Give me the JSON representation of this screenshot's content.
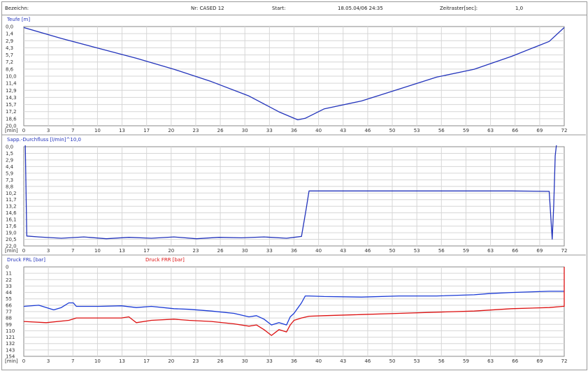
{
  "header": {
    "label_left": "Bezeichn:",
    "label_nr": "Nr: CASED 12",
    "label_start": "Start:",
    "start_value": "18.05.04/06 24:35",
    "label_interval": "Zeitraster[sec]:",
    "interval_value": "1,0"
  },
  "chart_data": [
    {
      "type": "line",
      "title": "Teufe [m]",
      "x_unit_label": "[min]",
      "x_ticks": [
        "0",
        "3",
        "7",
        "10",
        "13",
        "17",
        "20",
        "23",
        "26",
        "30",
        "33",
        "36",
        "40",
        "43",
        "46",
        "50",
        "53",
        "56",
        "59",
        "63",
        "66",
        "69",
        "72"
      ],
      "y_ticks": [
        "0,0",
        "1,4",
        "2,9",
        "4,3",
        "5,7",
        "7,2",
        "8,6",
        "10,0",
        "11,4",
        "12,9",
        "14,3",
        "15,7",
        "17,2",
        "18,6",
        "20,0"
      ],
      "xlim": [
        0,
        72
      ],
      "ylim": [
        0,
        20
      ],
      "y_inverted": true,
      "grid": true,
      "series": [
        {
          "color": "#2233bb",
          "x": [
            0,
            5,
            10,
            15,
            20,
            25,
            30,
            34,
            36.5,
            37.5,
            40,
            45,
            50,
            55,
            60,
            65,
            70,
            72
          ],
          "y": [
            0.2,
            2.4,
            4.4,
            6.4,
            8.6,
            11.1,
            14.0,
            17.2,
            18.8,
            18.5,
            16.6,
            15.0,
            12.6,
            10.2,
            8.6,
            6.0,
            3.0,
            0.2
          ]
        }
      ]
    },
    {
      "type": "line",
      "title": "Sapp.-Durchfluss [l/min]^10,0",
      "x_unit_label": "[min]",
      "x_ticks": [
        "0",
        "3",
        "7",
        "10",
        "13",
        "17",
        "20",
        "23",
        "26",
        "30",
        "33",
        "36",
        "40",
        "43",
        "46",
        "50",
        "53",
        "56",
        "59",
        "63",
        "66",
        "69",
        "72"
      ],
      "y_ticks": [
        "0,0",
        "1,5",
        "2,9",
        "4,4",
        "5,9",
        "7,3",
        "8,8",
        "10,2",
        "11,7",
        "13,2",
        "14,6",
        "16,1",
        "17,6",
        "19,0",
        "20,5",
        "22,0"
      ],
      "xlim": [
        0,
        72
      ],
      "ylim": [
        0,
        22
      ],
      "y_inverted": true,
      "grid": true,
      "series": [
        {
          "color": "#2233bb",
          "x": [
            0.2,
            0.4,
            2,
            5,
            8,
            11,
            14,
            17,
            20,
            23,
            26,
            29,
            32,
            35,
            36,
            37,
            37.6,
            38,
            39,
            45,
            55,
            65,
            70,
            70.4,
            70.6,
            70.8,
            71.0,
            72
          ],
          "y": [
            -1,
            19.8,
            20.0,
            20.3,
            20.0,
            20.4,
            20.1,
            20.3,
            20.0,
            20.4,
            20.1,
            20.2,
            20.0,
            20.3,
            20.1,
            19.9,
            14.0,
            9.8,
            9.8,
            9.8,
            9.8,
            9.8,
            9.9,
            20.5,
            13.0,
            2.0,
            -1,
            -1
          ]
        }
      ]
    },
    {
      "type": "line",
      "title": "Druck FRL [bar]",
      "title_2": "Druck FRR [bar]",
      "x_unit_label": "[min]",
      "x_ticks": [
        "0",
        "3",
        "7",
        "10",
        "13",
        "17",
        "20",
        "23",
        "26",
        "30",
        "33",
        "36",
        "40",
        "43",
        "46",
        "50",
        "53",
        "56",
        "59",
        "63",
        "66",
        "69",
        "72"
      ],
      "y_ticks": [
        "0",
        "11",
        "22",
        "33",
        "44",
        "55",
        "66",
        "77",
        "88",
        "99",
        "110",
        "121",
        "132",
        "143",
        "154"
      ],
      "xlim": [
        0,
        72
      ],
      "ylim": [
        0,
        154
      ],
      "y_inverted": true,
      "grid": true,
      "series": [
        {
          "name": "Druck FRL [bar]",
          "color": "#1a3ad6",
          "x": [
            0,
            2,
            4,
            5,
            6,
            6.6,
            7,
            10,
            13,
            15,
            17,
            20,
            22,
            25,
            28,
            30,
            31,
            32,
            33,
            34,
            35,
            35.5,
            36,
            37,
            37.5,
            38,
            40,
            45,
            50,
            55,
            60,
            62,
            65,
            70,
            72
          ],
          "y": [
            68,
            66,
            74,
            70,
            62,
            62,
            68,
            68,
            67,
            70,
            68,
            72,
            73,
            76,
            80,
            86,
            84,
            90,
            100,
            96,
            100,
            86,
            80,
            62,
            50,
            50,
            51,
            52,
            50,
            50,
            48,
            46,
            44,
            42,
            42
          ]
        },
        {
          "name": "Druck FRR [bar]",
          "color": "#dd1111",
          "x": [
            0,
            3,
            6,
            7,
            10,
            13,
            14,
            14.6,
            15,
            17,
            20,
            22,
            25,
            28,
            30,
            31,
            32,
            33,
            34,
            35,
            35.5,
            36,
            37,
            38,
            40,
            45,
            50,
            55,
            60,
            65,
            70,
            71.8,
            72,
            72
          ],
          "y": [
            94,
            96,
            92,
            88,
            88,
            88,
            86,
            92,
            96,
            92,
            90,
            92,
            94,
            98,
            102,
            100,
            108,
            118,
            108,
            112,
            100,
            92,
            88,
            85,
            84,
            82,
            80,
            78,
            76,
            72,
            70,
            68,
            68,
            0
          ]
        }
      ]
    }
  ]
}
